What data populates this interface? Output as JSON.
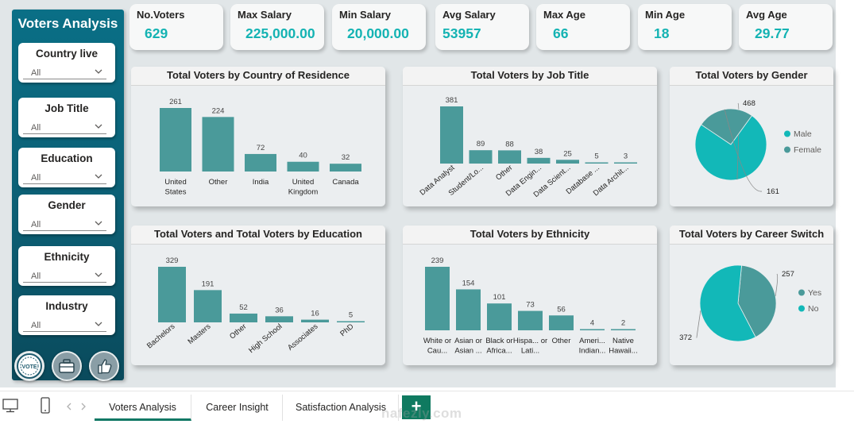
{
  "sidebar": {
    "title": "Voters Analysis",
    "slicers": [
      {
        "label": "Country live",
        "value": "All"
      },
      {
        "label": "Job Title",
        "value": "All"
      },
      {
        "label": "Education",
        "value": "All"
      },
      {
        "label": "Gender",
        "value": "All"
      },
      {
        "label": "Ethnicity",
        "value": "All"
      },
      {
        "label": "Industry",
        "value": "All"
      }
    ],
    "nav_icons": [
      "vote-badge-icon",
      "briefcase-icon",
      "thumbs-up-icon"
    ],
    "vote_badge_text": "VOTE"
  },
  "kpis": [
    {
      "label": "No.Voters",
      "value": "629"
    },
    {
      "label": "Max Salary",
      "value": "225,000.00"
    },
    {
      "label": "Min Salary",
      "value": "20,000.00"
    },
    {
      "label": "Avg Salary",
      "value": "53957"
    },
    {
      "label": "Max Age",
      "value": "66"
    },
    {
      "label": "Min Age",
      "value": "18"
    },
    {
      "label": "Avg Age",
      "value": "29.77"
    }
  ],
  "colors": {
    "bar": "#4a9a9a",
    "male": "#12b8b8",
    "female": "#4a9a9a",
    "accent": "#14b3b3",
    "sidebar": "#0a6f86"
  },
  "chart_data": [
    {
      "type": "bar",
      "title": "Total Voters by Country of Residence",
      "categories": [
        "United States",
        "Other",
        "India",
        "United Kingdom",
        "Canada"
      ],
      "values": [
        261,
        224,
        72,
        40,
        32
      ]
    },
    {
      "type": "bar",
      "title": "Total Voters by Job Title",
      "categories": [
        "Data Analyst",
        "Student/Lo...",
        "Other",
        "Data Engin...",
        "Data Scient...",
        "Database ...",
        "Data Archit..."
      ],
      "values": [
        381,
        89,
        88,
        38,
        25,
        5,
        3
      ]
    },
    {
      "type": "pie",
      "title": "Total Voters by Gender",
      "categories": [
        "Male",
        "Female"
      ],
      "values": [
        468,
        161
      ],
      "legend": "right"
    },
    {
      "type": "bar",
      "title": "Total Voters and Total Voters by Education",
      "categories": [
        "Bachelors",
        "Masters",
        "Other",
        "High School",
        "Associates",
        "PhD"
      ],
      "values": [
        329,
        191,
        52,
        36,
        16,
        5
      ]
    },
    {
      "type": "bar",
      "title": "Total Voters by Ethnicity",
      "categories": [
        "White or Cau...",
        "Asian or Asian ...",
        "Black or Africa...",
        "Hispa... or Lati...",
        "Other",
        "Ameri... Indian...",
        "Native Hawaii..."
      ],
      "values": [
        239,
        154,
        101,
        73,
        56,
        4,
        2
      ]
    },
    {
      "type": "pie",
      "title": "Total Voters by Career Switch",
      "categories": [
        "Yes",
        "No"
      ],
      "values": [
        257,
        372
      ],
      "legend": "right"
    }
  ],
  "tabs": [
    {
      "label": "Voters Analysis",
      "active": true
    },
    {
      "label": "Career Insight",
      "active": false
    },
    {
      "label": "Satisfaction Analysis",
      "active": false
    }
  ],
  "add_page_label": "+",
  "watermark": "nafezly.com"
}
